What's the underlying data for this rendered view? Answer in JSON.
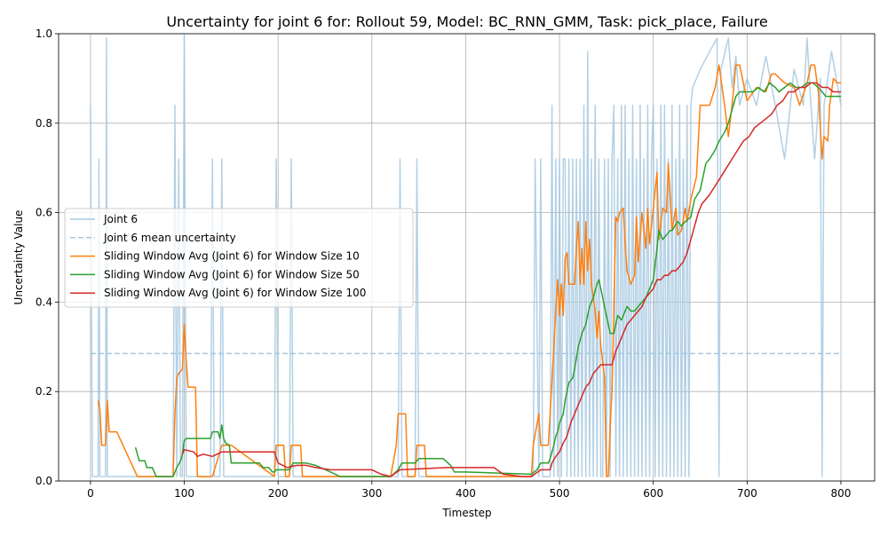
{
  "chart_data": {
    "type": "line",
    "title": "Uncertainty for joint 6 for: Rollout 59, Model: BC_RNN_GMM, Task: pick_place, Failure",
    "xlabel": "Timestep",
    "ylabel": "Uncertainty Value",
    "xlim": [
      -34,
      1836
    ],
    "ylim": [
      0.0,
      1.0
    ],
    "xticks": [
      0,
      100,
      200,
      300,
      400,
      500,
      600,
      700,
      800
    ],
    "yticks": [
      0.0,
      0.2,
      0.4,
      0.6,
      0.8,
      1.0
    ],
    "xtick_labels": [
      "0",
      "100",
      "200",
      "300",
      "400",
      "500",
      "600",
      "700",
      "800"
    ],
    "ytick_labels": [
      "0.0",
      "0.2",
      "0.4",
      "0.6",
      "0.8",
      "1.0"
    ],
    "grid": true,
    "legend_position": "center-left",
    "series": [
      {
        "name": "Joint 6",
        "color": "#a6c8e0",
        "style": "solid",
        "x": [
          0,
          2,
          8,
          9,
          10,
          16,
          17,
          18,
          20,
          88,
          90,
          92,
          94,
          96,
          98,
          100,
          102,
          104,
          128,
          130,
          132,
          138,
          140,
          142,
          196,
          198,
          200,
          212,
          214,
          216,
          328,
          330,
          332,
          346,
          348,
          350,
          472,
          474,
          478,
          480,
          482,
          490,
          492,
          494,
          496,
          498,
          500,
          502,
          504,
          506,
          508,
          510,
          512,
          514,
          516,
          518,
          520,
          522,
          524,
          526,
          528,
          530,
          532,
          534,
          536,
          538,
          540,
          542,
          544,
          546,
          548,
          550,
          552,
          554,
          556,
          558,
          560,
          562,
          564,
          566,
          568,
          570,
          572,
          574,
          576,
          578,
          580,
          582,
          584,
          586,
          588,
          590,
          592,
          594,
          596,
          598,
          600,
          602,
          604,
          606,
          608,
          610,
          612,
          614,
          616,
          618,
          620,
          622,
          624,
          626,
          628,
          630,
          632,
          634,
          636,
          638,
          640,
          642,
          650,
          660,
          668,
          670,
          672,
          680,
          684,
          688,
          692,
          700,
          710,
          720,
          730,
          740,
          750,
          760,
          764,
          768,
          772,
          778,
          780,
          782,
          790,
          800
        ],
        "values": [
          0.84,
          0.01,
          0.01,
          0.72,
          0.01,
          0.01,
          0.99,
          0.01,
          0.01,
          0.01,
          0.84,
          0.01,
          0.72,
          0.01,
          0.01,
          1.0,
          0.01,
          0.01,
          0.01,
          0.72,
          0.01,
          0.01,
          0.72,
          0.01,
          0.01,
          0.72,
          0.01,
          0.01,
          0.72,
          0.01,
          0.01,
          0.72,
          0.01,
          0.01,
          0.72,
          0.01,
          0.01,
          0.72,
          0.01,
          0.72,
          0.01,
          0.01,
          0.84,
          0.01,
          0.72,
          0.01,
          0.72,
          0.01,
          0.72,
          0.72,
          0.01,
          0.72,
          0.01,
          0.72,
          0.01,
          0.72,
          0.01,
          0.72,
          0.01,
          0.84,
          0.01,
          0.96,
          0.01,
          0.72,
          0.01,
          0.84,
          0.01,
          0.72,
          0.01,
          0.01,
          0.72,
          0.01,
          0.72,
          0.01,
          0.72,
          0.84,
          0.01,
          0.72,
          0.01,
          0.84,
          0.01,
          0.84,
          0.01,
          0.72,
          0.01,
          0.84,
          0.01,
          0.72,
          0.01,
          0.84,
          0.01,
          0.72,
          0.01,
          0.84,
          0.01,
          0.72,
          0.84,
          0.01,
          0.72,
          0.01,
          0.84,
          0.01,
          0.84,
          0.01,
          0.72,
          0.01,
          0.84,
          0.01,
          0.72,
          0.01,
          0.84,
          0.01,
          0.72,
          0.01,
          0.84,
          0.01,
          0.84,
          0.88,
          0.92,
          0.96,
          0.99,
          0.01,
          0.92,
          0.99,
          0.88,
          0.95,
          0.84,
          0.9,
          0.84,
          0.95,
          0.84,
          0.72,
          0.92,
          0.84,
          0.99,
          0.84,
          0.72,
          0.9,
          0.01,
          0.84,
          0.96,
          0.84
        ]
      },
      {
        "name": "Joint 6 mean uncertainty",
        "color": "#a6c8e0",
        "style": "dashed",
        "x": [
          0,
          800
        ],
        "values": [
          0.285,
          0.285
        ]
      },
      {
        "name": "Sliding Window Avg (Joint 6) for Window Size 10",
        "color": "#ff7f0e",
        "style": "solid",
        "x": [
          8,
          10,
          12,
          16,
          18,
          20,
          28,
          50,
          88,
          90,
          92,
          94,
          98,
          100,
          102,
          104,
          112,
          114,
          130,
          140,
          150,
          196,
          198,
          206,
          208,
          212,
          214,
          224,
          226,
          240,
          320,
          326,
          328,
          336,
          338,
          346,
          348,
          356,
          358,
          380,
          470,
          472,
          478,
          480,
          488,
          490,
          494,
          496,
          498,
          500,
          502,
          504,
          506,
          508,
          510,
          516,
          518,
          520,
          522,
          524,
          526,
          528,
          530,
          532,
          534,
          538,
          540,
          542,
          544,
          548,
          550,
          552,
          554,
          556,
          560,
          562,
          564,
          568,
          570,
          572,
          576,
          580,
          582,
          584,
          588,
          592,
          594,
          596,
          600,
          604,
          606,
          610,
          614,
          616,
          620,
          624,
          626,
          630,
          634,
          636,
          640,
          646,
          650,
          654,
          660,
          666,
          670,
          676,
          680,
          684,
          688,
          692,
          700,
          710,
          720,
          726,
          730,
          740,
          750,
          756,
          764,
          768,
          772,
          776,
          780,
          782,
          786,
          788,
          792,
          796,
          800
        ],
        "values": [
          0.18,
          0.16,
          0.08,
          0.08,
          0.18,
          0.11,
          0.11,
          0.01,
          0.01,
          0.15,
          0.23,
          0.24,
          0.25,
          0.35,
          0.27,
          0.21,
          0.21,
          0.01,
          0.01,
          0.08,
          0.08,
          0.01,
          0.08,
          0.08,
          0.01,
          0.01,
          0.08,
          0.08,
          0.01,
          0.01,
          0.01,
          0.08,
          0.15,
          0.15,
          0.01,
          0.01,
          0.08,
          0.08,
          0.01,
          0.01,
          0.01,
          0.08,
          0.15,
          0.08,
          0.08,
          0.15,
          0.3,
          0.38,
          0.45,
          0.37,
          0.44,
          0.37,
          0.5,
          0.51,
          0.44,
          0.44,
          0.52,
          0.58,
          0.44,
          0.52,
          0.44,
          0.58,
          0.47,
          0.54,
          0.44,
          0.38,
          0.32,
          0.38,
          0.3,
          0.23,
          0.01,
          0.01,
          0.12,
          0.2,
          0.59,
          0.58,
          0.6,
          0.61,
          0.53,
          0.47,
          0.44,
          0.46,
          0.59,
          0.49,
          0.6,
          0.52,
          0.61,
          0.53,
          0.61,
          0.69,
          0.54,
          0.61,
          0.6,
          0.71,
          0.56,
          0.61,
          0.55,
          0.56,
          0.61,
          0.58,
          0.63,
          0.68,
          0.84,
          0.84,
          0.84,
          0.88,
          0.93,
          0.84,
          0.77,
          0.84,
          0.93,
          0.93,
          0.85,
          0.88,
          0.87,
          0.91,
          0.91,
          0.89,
          0.88,
          0.84,
          0.89,
          0.93,
          0.93,
          0.87,
          0.72,
          0.77,
          0.76,
          0.84,
          0.9,
          0.89,
          0.89
        ]
      },
      {
        "name": "Sliding Window Avg (Joint 6) for Window Size 50",
        "color": "#2ca02c",
        "style": "solid",
        "x": [
          48,
          52,
          58,
          60,
          66,
          68,
          70,
          88,
          92,
          96,
          98,
          100,
          102,
          104,
          128,
          130,
          136,
          138,
          140,
          142,
          144,
          148,
          150,
          180,
          184,
          190,
          194,
          196,
          198,
          212,
          216,
          230,
          240,
          256,
          266,
          320,
          328,
          332,
          336,
          346,
          350,
          376,
          384,
          388,
          400,
          470,
          476,
          480,
          484,
          488,
          490,
          494,
          496,
          498,
          500,
          504,
          506,
          510,
          514,
          516,
          520,
          524,
          528,
          532,
          536,
          540,
          542,
          546,
          550,
          554,
          556,
          558,
          562,
          566,
          568,
          572,
          576,
          580,
          584,
          588,
          592,
          596,
          600,
          604,
          606,
          610,
          614,
          618,
          620,
          626,
          630,
          634,
          640,
          644,
          650,
          656,
          660,
          666,
          670,
          676,
          680,
          684,
          688,
          692,
          700,
          706,
          712,
          718,
          724,
          730,
          734,
          740,
          746,
          752,
          758,
          764,
          770,
          776,
          780,
          784,
          790,
          800
        ],
        "values": [
          0.075,
          0.045,
          0.045,
          0.03,
          0.03,
          0.02,
          0.01,
          0.01,
          0.03,
          0.045,
          0.06,
          0.09,
          0.095,
          0.095,
          0.095,
          0.11,
          0.11,
          0.095,
          0.125,
          0.095,
          0.085,
          0.08,
          0.04,
          0.04,
          0.03,
          0.03,
          0.02,
          0.02,
          0.025,
          0.025,
          0.04,
          0.04,
          0.035,
          0.02,
          0.01,
          0.01,
          0.025,
          0.04,
          0.04,
          0.04,
          0.05,
          0.05,
          0.035,
          0.02,
          0.02,
          0.015,
          0.025,
          0.04,
          0.04,
          0.04,
          0.05,
          0.08,
          0.1,
          0.11,
          0.13,
          0.15,
          0.18,
          0.22,
          0.23,
          0.25,
          0.3,
          0.33,
          0.35,
          0.39,
          0.41,
          0.44,
          0.45,
          0.41,
          0.37,
          0.33,
          0.33,
          0.33,
          0.37,
          0.36,
          0.37,
          0.39,
          0.38,
          0.38,
          0.39,
          0.4,
          0.41,
          0.43,
          0.45,
          0.52,
          0.56,
          0.54,
          0.55,
          0.56,
          0.56,
          0.58,
          0.57,
          0.58,
          0.59,
          0.63,
          0.65,
          0.71,
          0.72,
          0.74,
          0.76,
          0.78,
          0.8,
          0.83,
          0.86,
          0.87,
          0.87,
          0.87,
          0.88,
          0.87,
          0.89,
          0.88,
          0.87,
          0.88,
          0.89,
          0.88,
          0.88,
          0.89,
          0.89,
          0.88,
          0.87,
          0.86,
          0.86,
          0.86
        ]
      },
      {
        "name": "Sliding Window Avg (Joint 6) for Window Size 100",
        "color": "#d62728",
        "style": "solid",
        "x": [
          98,
          100,
          110,
          114,
          120,
          130,
          140,
          150,
          196,
          200,
          210,
          220,
          230,
          240,
          256,
          260,
          300,
          310,
          320,
          330,
          380,
          430,
          440,
          460,
          470,
          480,
          490,
          492,
          496,
          500,
          504,
          508,
          512,
          516,
          520,
          524,
          528,
          532,
          536,
          540,
          544,
          550,
          556,
          560,
          564,
          568,
          572,
          576,
          580,
          584,
          588,
          592,
          596,
          600,
          604,
          608,
          612,
          616,
          620,
          624,
          628,
          632,
          636,
          640,
          644,
          648,
          652,
          656,
          660,
          666,
          672,
          678,
          684,
          690,
          696,
          702,
          708,
          714,
          720,
          726,
          732,
          738,
          744,
          750,
          756,
          762,
          768,
          774,
          780,
          786,
          792,
          800
        ],
        "values": [
          0.06,
          0.07,
          0.065,
          0.055,
          0.06,
          0.055,
          0.065,
          0.065,
          0.065,
          0.04,
          0.03,
          0.035,
          0.035,
          0.03,
          0.025,
          0.025,
          0.025,
          0.015,
          0.01,
          0.025,
          0.03,
          0.03,
          0.015,
          0.01,
          0.01,
          0.025,
          0.025,
          0.04,
          0.055,
          0.065,
          0.085,
          0.1,
          0.13,
          0.15,
          0.17,
          0.19,
          0.21,
          0.22,
          0.24,
          0.25,
          0.26,
          0.26,
          0.26,
          0.29,
          0.31,
          0.33,
          0.35,
          0.36,
          0.37,
          0.38,
          0.39,
          0.41,
          0.42,
          0.43,
          0.45,
          0.45,
          0.46,
          0.46,
          0.47,
          0.47,
          0.48,
          0.49,
          0.51,
          0.54,
          0.57,
          0.6,
          0.62,
          0.63,
          0.64,
          0.66,
          0.68,
          0.7,
          0.72,
          0.74,
          0.76,
          0.77,
          0.79,
          0.8,
          0.81,
          0.82,
          0.84,
          0.85,
          0.87,
          0.87,
          0.88,
          0.88,
          0.89,
          0.89,
          0.88,
          0.88,
          0.87,
          0.87
        ]
      }
    ]
  }
}
